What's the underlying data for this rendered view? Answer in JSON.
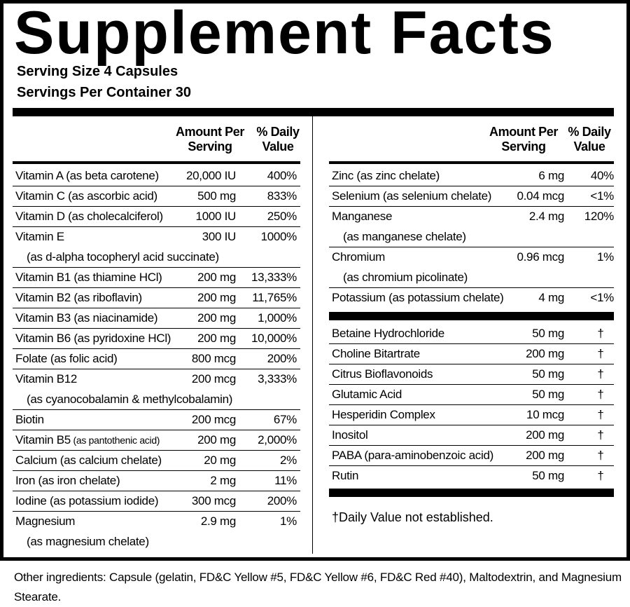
{
  "header": {
    "title": "Supplement Facts",
    "serving_size": "Serving Size 4 Capsules",
    "servings_per_container": "Servings Per Container 30"
  },
  "left_table": {
    "columns": [
      "Amount Per Serving",
      "% Daily Value"
    ],
    "rows": [
      {
        "name": "Vitamin A (as beta carotene)",
        "amount": "20,000 IU",
        "daily_value": "400%"
      },
      {
        "name": "Vitamin C (as ascorbic acid)",
        "amount": "500 mg",
        "daily_value": "833%"
      },
      {
        "name": "Vitamin D (as cholecalciferol)",
        "amount": "1000 IU",
        "daily_value": "250%"
      },
      {
        "name": "Vitamin E",
        "detail": "(as d-alpha tocopheryl acid succinate)",
        "amount": "300 IU",
        "daily_value": "1000%"
      },
      {
        "name": "Vitamin B1 (as thiamine HCl)",
        "amount": "200 mg",
        "daily_value": "13,333%"
      },
      {
        "name": "Vitamin B2 (as riboflavin)",
        "amount": "200 mg",
        "daily_value": "11,765%"
      },
      {
        "name": "Vitamin B3 (as niacinamide)",
        "amount": "200 mg",
        "daily_value": "1,000%"
      },
      {
        "name": "Vitamin B6  (as pyridoxine HCl)",
        "amount": "200 mg",
        "daily_value": "10,000%"
      },
      {
        "name": "Folate (as folic acid)",
        "amount": "800 mcg",
        "daily_value": "200%"
      },
      {
        "name": "Vitamin B12",
        "detail": "(as cyanocobalamin & methylcobalamin)",
        "amount": "200 mcg",
        "daily_value": "3,333%"
      },
      {
        "name": "Biotin",
        "amount": "200 mcg",
        "daily_value": "67%"
      },
      {
        "name": "Vitamin B5",
        "note": "(as pantothenic acid)",
        "amount": "200 mg",
        "daily_value": "2,000%"
      },
      {
        "name": "Calcium (as calcium chelate)",
        "amount": "20 mg",
        "daily_value": "2%"
      },
      {
        "name": "Iron (as iron chelate)",
        "amount": "2 mg",
        "daily_value": "11%"
      },
      {
        "name": "Iodine (as potassium iodide)",
        "amount": "300 mcg",
        "daily_value": "200%"
      },
      {
        "name": "Magnesium",
        "detail": "(as magnesium chelate)",
        "amount": "2.9 mg",
        "daily_value": "1%"
      }
    ]
  },
  "right_table": {
    "columns": [
      "Amount Per Serving",
      "% Daily Value"
    ],
    "rows": [
      {
        "name": "Zinc (as zinc chelate)",
        "amount": "6 mg",
        "daily_value": "40%"
      },
      {
        "name": "Selenium (as selenium chelate)",
        "amount": "0.04 mcg",
        "daily_value": "<1%"
      },
      {
        "name": "Manganese",
        "detail": "(as manganese chelate)",
        "amount": "2.4 mg",
        "daily_value": "120%"
      },
      {
        "name": "Chromium",
        "detail": "(as chromium picolinate)",
        "amount": "0.96 mcg",
        "daily_value": "1%"
      },
      {
        "name": "Potassium (as potassium chelate)",
        "amount": "4 mg",
        "daily_value": "<1%"
      }
    ]
  },
  "other_table": {
    "rows": [
      {
        "name": "Betaine Hydrochloride",
        "amount": "50 mg",
        "daily_value": "†"
      },
      {
        "name": "Choline Bitartrate",
        "amount": "200 mg",
        "daily_value": "†"
      },
      {
        "name": "Citrus Bioflavonoids",
        "amount": "50 mg",
        "daily_value": "†"
      },
      {
        "name": "Glutamic Acid",
        "amount": "50 mg",
        "daily_value": "†"
      },
      {
        "name": "Hesperidin Complex",
        "amount": "10 mcg",
        "daily_value": "†"
      },
      {
        "name": "Inositol",
        "amount": "200 mg",
        "daily_value": "†"
      },
      {
        "name": "PABA (para-aminobenzoic acid)",
        "amount": "200 mg",
        "daily_value": "†"
      },
      {
        "name": "Rutin",
        "amount": "50 mg",
        "daily_value": "†"
      }
    ]
  },
  "footnote": "†Daily Value not established.",
  "other_ingredients": "Other ingredients: Capsule (gelatin, FD&C Yellow #5, FD&C Yellow #6, FD&C Red #40), Maltodextrin, and Magnesium Stearate."
}
